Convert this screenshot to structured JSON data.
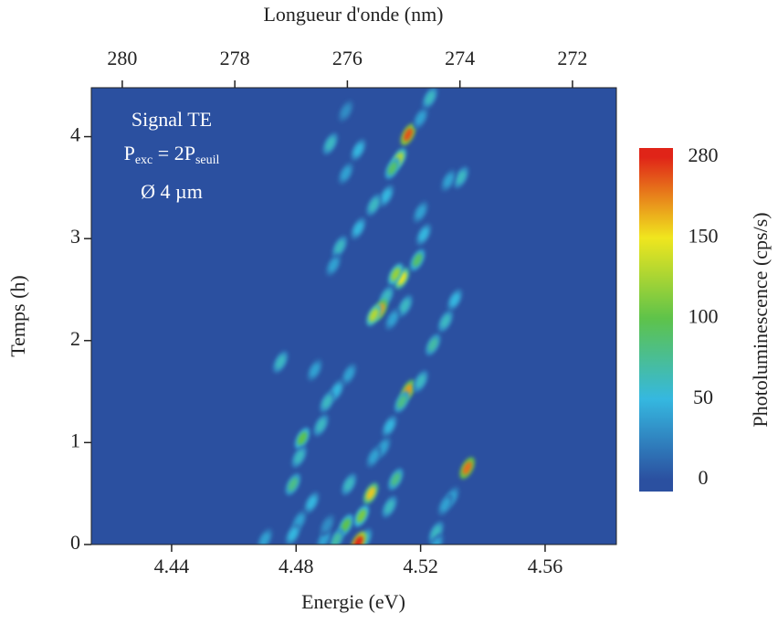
{
  "chart_data": {
    "type": "heatmap",
    "xlabel": "Energie (eV)",
    "x2label": "Longueur d'onde (nm)",
    "ylabel": "Temps (h)",
    "colorbar_label": "Photoluminescence (cps/s)",
    "xlim": [
      4.4142,
      4.5829
    ],
    "xticks": [
      4.44,
      4.48,
      4.52,
      4.56
    ],
    "x2lim": [
      280.55,
      271.22
    ],
    "x2ticks": [
      280,
      278,
      276,
      274,
      272
    ],
    "ylim": [
      0,
      4.48
    ],
    "yticks": [
      0,
      1,
      2,
      3,
      4
    ],
    "colorbar": {
      "ticks": [
        0,
        50,
        100,
        150,
        280
      ],
      "colors": [
        "#2b50a0",
        "#35b8e0",
        "#5ec34a",
        "#f0e61e",
        "#e02418"
      ]
    },
    "annotations": {
      "line1": "Signal TE",
      "line2": [
        "P",
        "exc",
        " = 2P",
        "seuil"
      ],
      "line3": "Ø 4 µm"
    },
    "spots": {
      "x": [
        4.516,
        4.513,
        4.511,
        4.523,
        4.52,
        4.496,
        4.491,
        4.533,
        4.529,
        4.5,
        4.496,
        4.509,
        4.505,
        4.5,
        4.494,
        4.492,
        4.52,
        4.521,
        4.519,
        4.514,
        4.512,
        4.509,
        4.507,
        4.505,
        4.531,
        4.528,
        4.524,
        4.515,
        4.511,
        4.475,
        4.486,
        4.497,
        4.493,
        4.49,
        4.488,
        4.516,
        4.514,
        4.52,
        4.51,
        4.508,
        4.505,
        4.535,
        4.53,
        4.528,
        4.482,
        4.481,
        4.479,
        4.485,
        4.481,
        4.479,
        4.504,
        4.501,
        4.502,
        4.497,
        4.496,
        4.493,
        4.5,
        4.512,
        4.51,
        4.525,
        4.525,
        4.47,
        4.489,
        4.49
      ],
      "y": [
        4.02,
        3.78,
        3.69,
        4.38,
        4.18,
        4.25,
        3.93,
        3.6,
        3.57,
        3.87,
        3.64,
        3.42,
        3.33,
        3.1,
        2.92,
        2.74,
        3.26,
        3.04,
        2.79,
        2.61,
        2.65,
        2.43,
        2.3,
        2.25,
        2.4,
        2.19,
        1.96,
        2.34,
        2.21,
        1.79,
        1.71,
        1.67,
        1.51,
        1.4,
        1.17,
        1.51,
        1.4,
        1.6,
        1.16,
        0.95,
        0.86,
        0.75,
        0.46,
        0.39,
        1.04,
        0.86,
        0.59,
        0.41,
        0.23,
        0.1,
        0.5,
        0.28,
        0.05,
        0.59,
        0.19,
        0.05,
        0.02,
        0.64,
        0.37,
        0.12,
        0,
        0.05,
        0.05,
        0.19
      ],
      "values": [
        250,
        130,
        90,
        60,
        40,
        30,
        60,
        60,
        40,
        50,
        40,
        50,
        60,
        50,
        60,
        40,
        40,
        50,
        90,
        150,
        120,
        60,
        200,
        130,
        50,
        60,
        70,
        60,
        40,
        60,
        40,
        40,
        50,
        60,
        60,
        200,
        80,
        60,
        50,
        40,
        40,
        230,
        40,
        40,
        100,
        60,
        80,
        50,
        40,
        50,
        170,
        110,
        60,
        60,
        100,
        70,
        280,
        80,
        60,
        60,
        40,
        40,
        40,
        30
      ]
    }
  }
}
